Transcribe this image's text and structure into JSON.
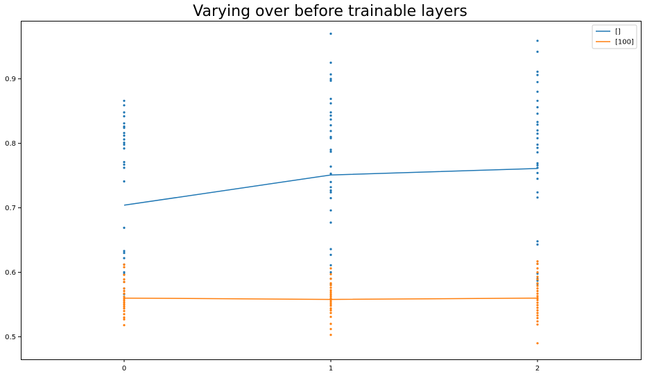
{
  "chart_data": {
    "type": "line",
    "title": "Varying over before trainable layers",
    "xlabel": "",
    "ylabel": "",
    "xlim": [
      -0.5,
      2.5
    ],
    "ylim": [
      0.465,
      0.99
    ],
    "x_ticks": [
      0,
      1,
      2
    ],
    "y_ticks": [
      0.5,
      0.6,
      0.7,
      0.8,
      0.9
    ],
    "grid": false,
    "legend_position": "top-right",
    "series": [
      {
        "name": "[]",
        "color": "#1f77b4",
        "x": [
          0,
          1,
          2
        ],
        "y": [
          0.704,
          0.751,
          0.761
        ],
        "points": [
          [
            0,
            0.866
          ],
          [
            0,
            0.859
          ],
          [
            0,
            0.848
          ],
          [
            0,
            0.842
          ],
          [
            0,
            0.831
          ],
          [
            0,
            0.826
          ],
          [
            0,
            0.824
          ],
          [
            0,
            0.816
          ],
          [
            0,
            0.812
          ],
          [
            0,
            0.806
          ],
          [
            0,
            0.801
          ],
          [
            0,
            0.798
          ],
          [
            0,
            0.792
          ],
          [
            0,
            0.771
          ],
          [
            0,
            0.767
          ],
          [
            0,
            0.762
          ],
          [
            0,
            0.741
          ],
          [
            0,
            0.669
          ],
          [
            0,
            0.633
          ],
          [
            0,
            0.63
          ],
          [
            0,
            0.622
          ],
          [
            0,
            0.612
          ],
          [
            0,
            0.6
          ],
          [
            0,
            0.597
          ],
          [
            0,
            0.585
          ],
          [
            0,
            0.575
          ],
          [
            0,
            0.566
          ],
          [
            1,
            0.97
          ],
          [
            1,
            0.925
          ],
          [
            1,
            0.907
          ],
          [
            1,
            0.9
          ],
          [
            1,
            0.897
          ],
          [
            1,
            0.869
          ],
          [
            1,
            0.862
          ],
          [
            1,
            0.848
          ],
          [
            1,
            0.843
          ],
          [
            1,
            0.837
          ],
          [
            1,
            0.828
          ],
          [
            1,
            0.819
          ],
          [
            1,
            0.81
          ],
          [
            1,
            0.808
          ],
          [
            1,
            0.79
          ],
          [
            1,
            0.787
          ],
          [
            1,
            0.764
          ],
          [
            1,
            0.753
          ],
          [
            1,
            0.74
          ],
          [
            1,
            0.732
          ],
          [
            1,
            0.727
          ],
          [
            1,
            0.724
          ],
          [
            1,
            0.715
          ],
          [
            1,
            0.696
          ],
          [
            1,
            0.677
          ],
          [
            1,
            0.636
          ],
          [
            1,
            0.627
          ],
          [
            1,
            0.611
          ],
          [
            1,
            0.6
          ],
          [
            1,
            0.59
          ],
          [
            1,
            0.582
          ],
          [
            2,
            0.959
          ],
          [
            2,
            0.942
          ],
          [
            2,
            0.911
          ],
          [
            2,
            0.906
          ],
          [
            2,
            0.895
          ],
          [
            2,
            0.88
          ],
          [
            2,
            0.866
          ],
          [
            2,
            0.856
          ],
          [
            2,
            0.846
          ],
          [
            2,
            0.833
          ],
          [
            2,
            0.829
          ],
          [
            2,
            0.82
          ],
          [
            2,
            0.815
          ],
          [
            2,
            0.808
          ],
          [
            2,
            0.798
          ],
          [
            2,
            0.793
          ],
          [
            2,
            0.786
          ],
          [
            2,
            0.769
          ],
          [
            2,
            0.766
          ],
          [
            2,
            0.762
          ],
          [
            2,
            0.754
          ],
          [
            2,
            0.745
          ],
          [
            2,
            0.724
          ],
          [
            2,
            0.716
          ],
          [
            2,
            0.648
          ],
          [
            2,
            0.643
          ],
          [
            2,
            0.613
          ],
          [
            2,
            0.598
          ],
          [
            2,
            0.59
          ],
          [
            2,
            0.587
          ],
          [
            2,
            0.582
          ]
        ]
      },
      {
        "name": "[100]",
        "color": "#ff7f0e",
        "x": [
          0,
          1,
          2
        ],
        "y": [
          0.56,
          0.558,
          0.56
        ],
        "points": [
          [
            0,
            0.612
          ],
          [
            0,
            0.608
          ],
          [
            0,
            0.596
          ],
          [
            0,
            0.589
          ],
          [
            0,
            0.585
          ],
          [
            0,
            0.575
          ],
          [
            0,
            0.571
          ],
          [
            0,
            0.567
          ],
          [
            0,
            0.562
          ],
          [
            0,
            0.559
          ],
          [
            0,
            0.556
          ],
          [
            0,
            0.553
          ],
          [
            0,
            0.55
          ],
          [
            0,
            0.547
          ],
          [
            0,
            0.544
          ],
          [
            0,
            0.54
          ],
          [
            0,
            0.535
          ],
          [
            0,
            0.53
          ],
          [
            0,
            0.527
          ],
          [
            0,
            0.518
          ],
          [
            1,
            0.606
          ],
          [
            1,
            0.597
          ],
          [
            1,
            0.59
          ],
          [
            1,
            0.583
          ],
          [
            1,
            0.58
          ],
          [
            1,
            0.576
          ],
          [
            1,
            0.572
          ],
          [
            1,
            0.569
          ],
          [
            1,
            0.566
          ],
          [
            1,
            0.563
          ],
          [
            1,
            0.56
          ],
          [
            1,
            0.557
          ],
          [
            1,
            0.554
          ],
          [
            1,
            0.551
          ],
          [
            1,
            0.548
          ],
          [
            1,
            0.544
          ],
          [
            1,
            0.541
          ],
          [
            1,
            0.537
          ],
          [
            1,
            0.531
          ],
          [
            1,
            0.52
          ],
          [
            1,
            0.512
          ],
          [
            1,
            0.503
          ],
          [
            2,
            0.617
          ],
          [
            2,
            0.613
          ],
          [
            2,
            0.606
          ],
          [
            2,
            0.6
          ],
          [
            2,
            0.593
          ],
          [
            2,
            0.589
          ],
          [
            2,
            0.583
          ],
          [
            2,
            0.579
          ],
          [
            2,
            0.575
          ],
          [
            2,
            0.571
          ],
          [
            2,
            0.567
          ],
          [
            2,
            0.563
          ],
          [
            2,
            0.56
          ],
          [
            2,
            0.557
          ],
          [
            2,
            0.553
          ],
          [
            2,
            0.549
          ],
          [
            2,
            0.545
          ],
          [
            2,
            0.541
          ],
          [
            2,
            0.537
          ],
          [
            2,
            0.533
          ],
          [
            2,
            0.529
          ],
          [
            2,
            0.524
          ],
          [
            2,
            0.519
          ],
          [
            2,
            0.49
          ]
        ]
      }
    ]
  }
}
